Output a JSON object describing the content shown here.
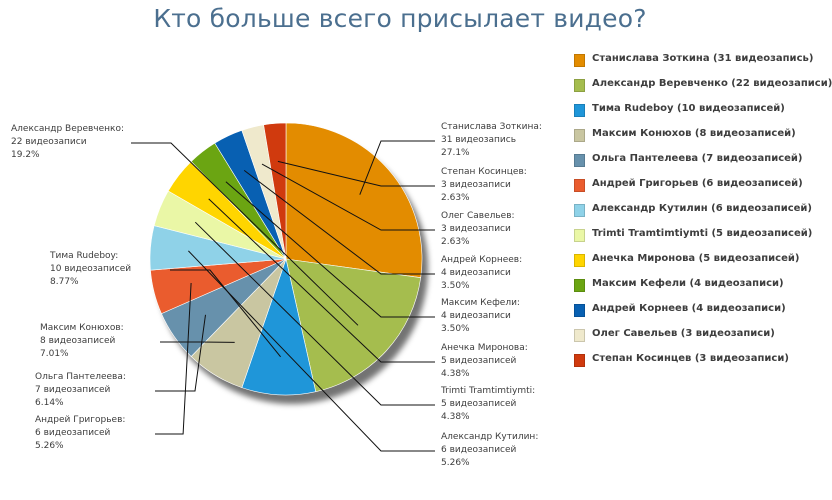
{
  "title": "Кто больше всего присылает видео?",
  "chart_data": {
    "type": "pie",
    "title": "Кто больше всего присылает видео?",
    "legend_placement": "right",
    "slices": [
      {
        "name": "Станислава Зоткина",
        "count": 31,
        "percent": 27.1,
        "color": "#e38c00",
        "legend": "Станислава Зоткина (31 видеозапись)",
        "label_lines": [
          "Станислава Зоткина:",
          "31 видеозапись",
          "27.1%"
        ]
      },
      {
        "name": "Александр Веревченко",
        "count": 22,
        "percent": 19.2,
        "color": "#a5bd4e",
        "legend": "Александр Веревченко (22 видеозаписи)",
        "label_lines": [
          "Александр Веревченко:",
          "22 видеозаписи",
          "19.2%"
        ]
      },
      {
        "name": "Тима Rudeboy",
        "count": 10,
        "percent": 8.77,
        "color": "#1f96d9",
        "legend": "Тима Rudeboy (10 видеозаписей)",
        "label_lines": [
          "Тима Rudeboy:",
          "10 видеозаписей",
          "8.77%"
        ]
      },
      {
        "name": "Максим Конюхов",
        "count": 8,
        "percent": 7.01,
        "color": "#c9c6a1",
        "legend": "Максим Конюхов (8 видеозаписей)",
        "label_lines": [
          "Максим Конюхов:",
          "8 видеозаписей",
          "7.01%"
        ]
      },
      {
        "name": "Ольга Пантелеева",
        "count": 7,
        "percent": 6.14,
        "color": "#6791ac",
        "legend": "Ольга Пантелеева (7 видеозаписей)",
        "label_lines": [
          "Ольга Пантелеева:",
          "7 видеозаписей",
          "6.14%"
        ]
      },
      {
        "name": "Андрей Григорьев",
        "count": 6,
        "percent": 5.26,
        "color": "#ea5c2e",
        "legend": "Андрей Григорьев (6 видеозаписей)",
        "label_lines": [
          "Андрей Григорьев:",
          "6 видеозаписей",
          "5.26%"
        ]
      },
      {
        "name": "Александр Кутилин",
        "count": 6,
        "percent": 5.26,
        "color": "#8fd2e8",
        "legend": "Александр Кутилин (6 видеозаписей)",
        "label_lines": [
          "Александр Кутилин:",
          "6 видеозаписей",
          "5.26%"
        ]
      },
      {
        "name": "Trimti Tramtimtiymti",
        "count": 5,
        "percent": 4.38,
        "color": "#eaf7a6",
        "legend": "Trimti Tramtimtiymti (5 видеозаписей)",
        "label_lines": [
          "Trimti Tramtimtiymti:",
          "5 видеозаписей",
          "4.38%"
        ]
      },
      {
        "name": "Анечка Миронова",
        "count": 5,
        "percent": 4.38,
        "color": "#ffd500",
        "legend": "Анечка Миронова (5 видеозаписей)",
        "label_lines": [
          "Анечка Миронова:",
          "5 видеозаписей",
          "4.38%"
        ]
      },
      {
        "name": "Максим Кефели",
        "count": 4,
        "percent": 3.5,
        "color": "#6ba512",
        "legend": "Максим Кефели (4 видеозаписи)",
        "label_lines": [
          "Максим Кефели:",
          "4 видеозаписи",
          "3.50%"
        ]
      },
      {
        "name": "Андрей Корнеев",
        "count": 4,
        "percent": 3.5,
        "color": "#0860b2",
        "legend": "Андрей Корнеев (4 видеозаписи)",
        "label_lines": [
          "Андрей Корнеев:",
          "4 видеозаписи",
          "3.50%"
        ]
      },
      {
        "name": "Олег Савельев",
        "count": 3,
        "percent": 2.63,
        "color": "#efe9cc",
        "legend": "Олег Савельев (3 видеозаписи)",
        "label_lines": [
          "Олег Савельев:",
          "3 видеозаписи",
          "2.63%"
        ]
      },
      {
        "name": "Степан Косинцев",
        "count": 3,
        "percent": 2.63,
        "color": "#d03a0e",
        "legend": "Степан Косинцев (3 видеозаписи)",
        "label_lines": [
          "Степан Косинцев:",
          "3 видеозаписи",
          "2.63%"
        ]
      }
    ]
  }
}
